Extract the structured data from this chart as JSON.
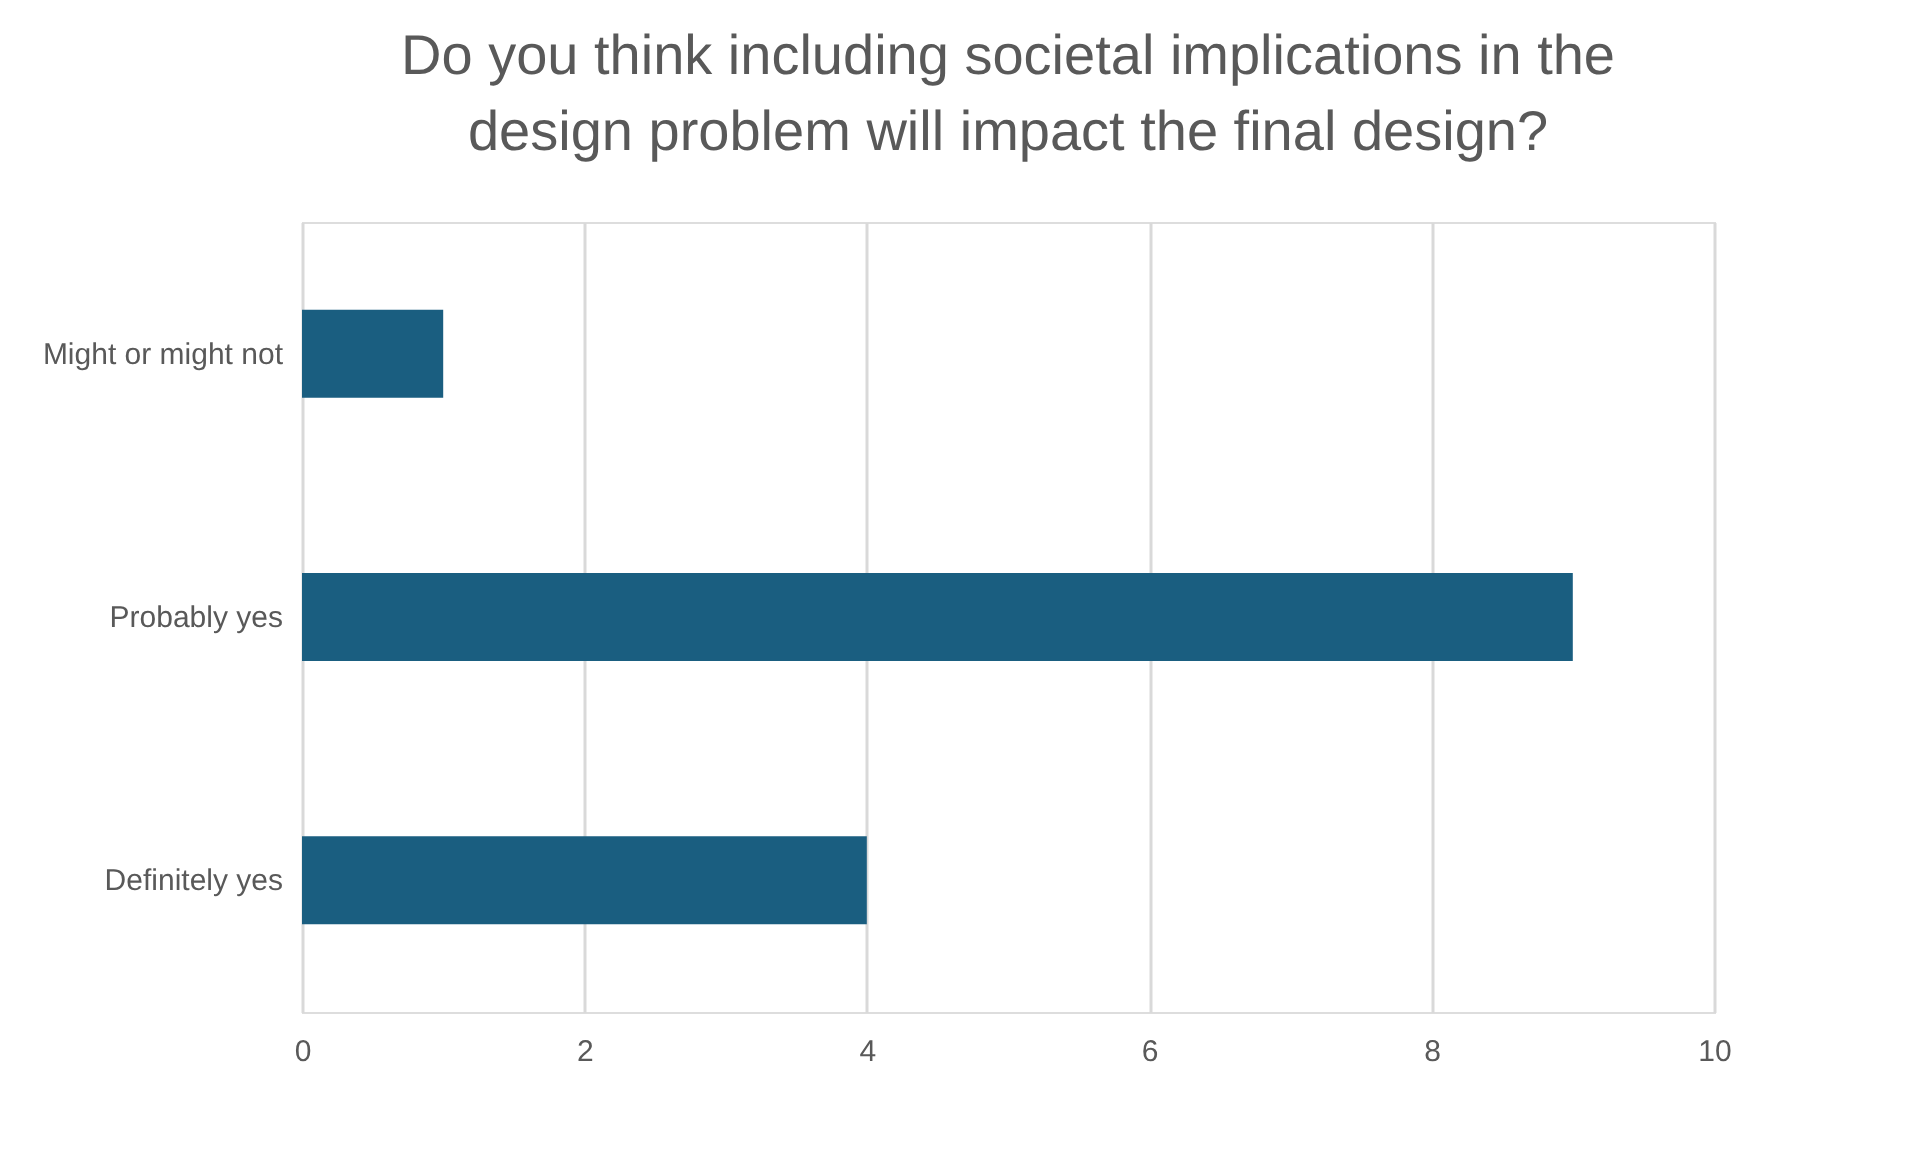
{
  "chart_data": {
    "type": "bar",
    "orientation": "horizontal",
    "title": "Do you think including societal implications in the design problem will impact the final design?",
    "categories": [
      "Might or might not",
      "Probably yes",
      "Definitely yes"
    ],
    "values": [
      1,
      9,
      4
    ],
    "color": "#1a5e80",
    "xlim": [
      0,
      10
    ],
    "xticks": [
      0,
      2,
      4,
      6,
      8,
      10
    ],
    "grid": "x"
  }
}
